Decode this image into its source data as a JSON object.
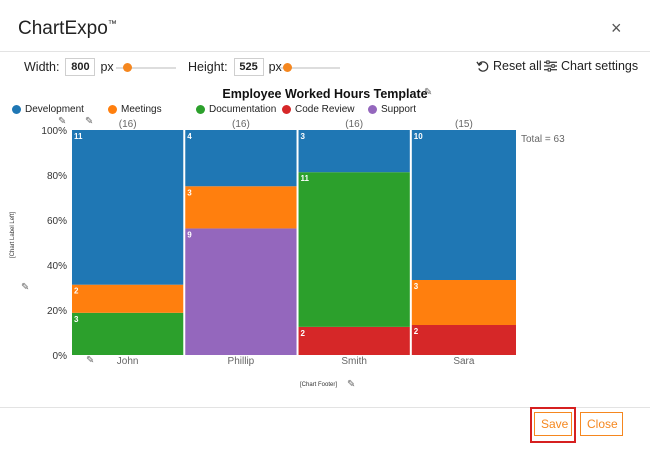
{
  "dialog": {
    "title": "ChartExpo",
    "title_mark": "™",
    "close_label": "×"
  },
  "controls": {
    "width_label": "Width:",
    "width_value": "800",
    "width_unit": "px",
    "height_label": "Height:",
    "height_value": "525",
    "height_unit": "px",
    "reset_label": "Reset all",
    "settings_label": "Chart settings"
  },
  "chart_data": {
    "type": "marimekko",
    "title": "Employee Worked Hours Template",
    "legend": [
      {
        "name": "Development",
        "color": "#1f77b4"
      },
      {
        "name": "Meetings",
        "color": "#ff7f0e"
      },
      {
        "name": "Documentation",
        "color": "#2ca02c"
      },
      {
        "name": "Code Review",
        "color": "#d62728"
      },
      {
        "name": "Support",
        "color": "#9467bd"
      }
    ],
    "y_ticks": [
      "0%",
      "20%",
      "40%",
      "60%",
      "80%",
      "100%"
    ],
    "total_label": "Total = 63",
    "columns": [
      {
        "name": "John",
        "total_label": "(16)",
        "segments": [
          {
            "series": "Documentation",
            "value": 3,
            "color": "#2ca02c"
          },
          {
            "series": "Meetings",
            "value": 2,
            "color": "#ff7f0e"
          },
          {
            "series": "Development",
            "value": 11,
            "color": "#1f77b4"
          }
        ]
      },
      {
        "name": "Phillip",
        "total_label": "(16)",
        "segments": [
          {
            "series": "Support",
            "value": 9,
            "color": "#9467bd"
          },
          {
            "series": "Meetings",
            "value": 3,
            "color": "#ff7f0e"
          },
          {
            "series": "Development",
            "value": 4,
            "color": "#1f77b4"
          }
        ]
      },
      {
        "name": "Smith",
        "total_label": "(16)",
        "segments": [
          {
            "series": "Code Review",
            "value": 2,
            "color": "#d62728"
          },
          {
            "series": "Documentation",
            "value": 11,
            "color": "#2ca02c"
          },
          {
            "series": "Development",
            "value": 3,
            "color": "#1f77b4"
          }
        ]
      },
      {
        "name": "Sara",
        "total_label": "(15)",
        "segments": [
          {
            "series": "Code Review",
            "value": 2,
            "color": "#d62728"
          },
          {
            "series": "Meetings",
            "value": 3,
            "color": "#ff7f0e"
          },
          {
            "series": "Development",
            "value": 10,
            "color": "#1f77b4"
          }
        ]
      }
    ],
    "footer_placeholder": "[Chart Footer]",
    "left_axis_placeholder": "[Chart Label Left]"
  },
  "buttons": {
    "save_label": "Save",
    "close_label": "Close"
  },
  "colors": {
    "accent": "#f5871f",
    "highlight": "#d62020"
  },
  "icons": [
    "close-icon",
    "reset-icon",
    "settings-sliders-icon",
    "pencil-icon"
  ]
}
